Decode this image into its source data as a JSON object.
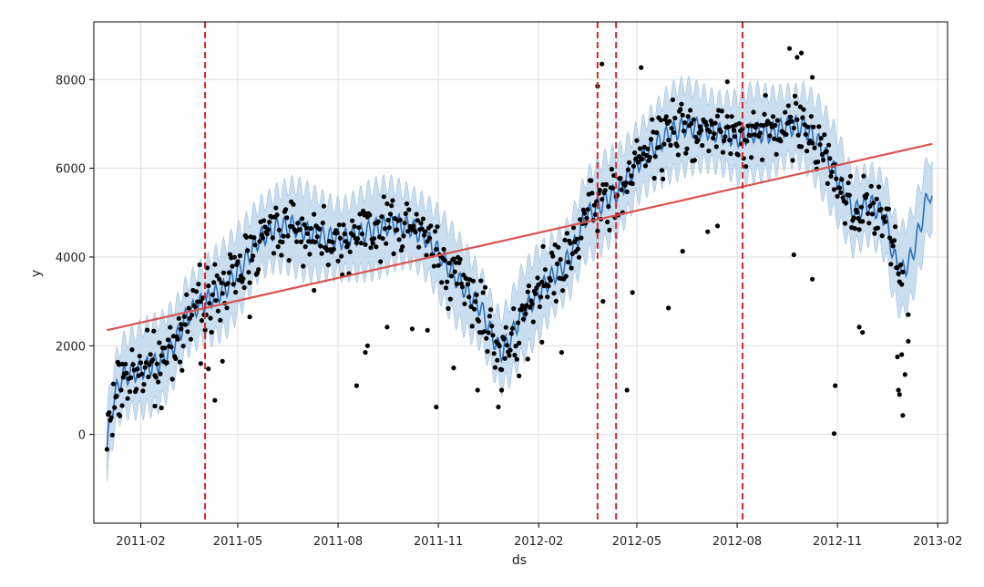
{
  "chart_data": {
    "type": "line",
    "xlabel": "ds",
    "ylabel": "y",
    "x_range": [
      "2010-12-20",
      "2013-02-10"
    ],
    "y_range": [
      -2000,
      9300
    ],
    "grid": true,
    "x_ticks": [
      "2011-02",
      "2011-05",
      "2011-08",
      "2011-11",
      "2012-02",
      "2012-05",
      "2012-08",
      "2012-11",
      "2013-02"
    ],
    "y_ticks": [
      "0",
      "2000",
      "4000",
      "6000",
      "8000"
    ],
    "colors": {
      "observed": "#000000",
      "forecast": "#2c6fbb",
      "uncertainty": "#b8d3ea",
      "trend": "#d9534f",
      "changepoint": "#d62728",
      "grid": "#dddddd",
      "frame": "#000000"
    },
    "series": [
      {
        "role": "forecast",
        "points": [
          [
            "2011-01-01",
            -300
          ],
          [
            "2011-01-05",
            500
          ],
          [
            "2011-01-10",
            1000
          ],
          [
            "2011-01-15",
            1300
          ],
          [
            "2011-01-25",
            1400
          ],
          [
            "2011-02-05",
            1500
          ],
          [
            "2011-02-20",
            1650
          ],
          [
            "2011-03-05",
            2100
          ],
          [
            "2011-03-15",
            2650
          ],
          [
            "2011-03-25",
            2900
          ],
          [
            "2011-04-05",
            3050
          ],
          [
            "2011-04-20",
            3300
          ],
          [
            "2011-05-05",
            3800
          ],
          [
            "2011-05-20",
            4400
          ],
          [
            "2011-06-05",
            4650
          ],
          [
            "2011-06-20",
            4700
          ],
          [
            "2011-07-05",
            4550
          ],
          [
            "2011-07-20",
            4450
          ],
          [
            "2011-08-05",
            4400
          ],
          [
            "2011-08-20",
            4500
          ],
          [
            "2011-09-05",
            4650
          ],
          [
            "2011-09-20",
            4750
          ],
          [
            "2011-10-05",
            4700
          ],
          [
            "2011-10-20",
            4450
          ],
          [
            "2011-11-01",
            4100
          ],
          [
            "2011-11-15",
            3600
          ],
          [
            "2011-12-01",
            3100
          ],
          [
            "2011-12-10",
            2850
          ],
          [
            "2011-12-20",
            2250
          ],
          [
            "2011-12-28",
            1850
          ],
          [
            "2012-01-05",
            2100
          ],
          [
            "2012-01-15",
            2650
          ],
          [
            "2012-02-01",
            3200
          ],
          [
            "2012-02-15",
            3600
          ],
          [
            "2012-03-01",
            4000
          ],
          [
            "2012-03-15",
            4900
          ],
          [
            "2012-04-01",
            5250
          ],
          [
            "2012-04-15",
            5500
          ],
          [
            "2012-05-01",
            6100
          ],
          [
            "2012-05-15",
            6450
          ],
          [
            "2012-06-01",
            6800
          ],
          [
            "2012-06-15",
            6950
          ],
          [
            "2012-07-01",
            6900
          ],
          [
            "2012-07-15",
            6800
          ],
          [
            "2012-08-01",
            6700
          ],
          [
            "2012-08-15",
            6800
          ],
          [
            "2012-09-01",
            6800
          ],
          [
            "2012-09-15",
            6950
          ],
          [
            "2012-10-01",
            6950
          ],
          [
            "2012-10-15",
            6550
          ],
          [
            "2012-11-01",
            5800
          ],
          [
            "2012-11-15",
            5000
          ],
          [
            "2012-12-01",
            5200
          ],
          [
            "2012-12-15",
            4900
          ],
          [
            "2012-12-22",
            4050
          ],
          [
            "2012-12-30",
            3650
          ],
          [
            "2013-01-08",
            4000
          ],
          [
            "2013-01-16",
            4700
          ],
          [
            "2013-01-24",
            5500
          ],
          [
            "2013-01-27",
            5200
          ]
        ],
        "uncertainty_halfwidth": 850,
        "weekly_amplitude": 230
      },
      {
        "role": "trend",
        "points": [
          [
            "2011-01-01",
            2350
          ],
          [
            "2013-01-27",
            6550
          ]
        ]
      }
    ],
    "changepoints": [
      "2011-04-01",
      "2012-03-26",
      "2012-04-12",
      "2012-08-06"
    ],
    "observed": {
      "point_count": 731,
      "residual_spread": 520,
      "dips": [
        [
          "2011-01-12",
          450
        ],
        [
          "2011-01-15",
          650
        ],
        [
          "2011-02-14",
          640
        ],
        [
          "2011-02-20",
          600
        ],
        [
          "2011-03-10",
          2480
        ],
        [
          "2011-03-28",
          1600
        ],
        [
          "2011-04-04",
          1480
        ],
        [
          "2011-04-10",
          770
        ],
        [
          "2011-04-17",
          1650
        ],
        [
          "2011-05-12",
          2650
        ],
        [
          "2011-07-10",
          3250
        ],
        [
          "2011-08-18",
          1100
        ],
        [
          "2011-08-26",
          1850
        ],
        [
          "2011-08-28",
          2000
        ],
        [
          "2011-09-15",
          2420
        ],
        [
          "2011-10-08",
          2380
        ],
        [
          "2011-10-22",
          2350
        ],
        [
          "2011-10-30",
          620
        ],
        [
          "2011-11-15",
          1500
        ],
        [
          "2011-12-07",
          1000
        ],
        [
          "2011-12-26",
          620
        ],
        [
          "2011-12-29",
          1000
        ],
        [
          "2012-01-14",
          1320
        ],
        [
          "2012-01-22",
          1700
        ],
        [
          "2012-02-04",
          2080
        ],
        [
          "2012-02-22",
          1850
        ],
        [
          "2012-03-31",
          3000
        ],
        [
          "2012-04-22",
          1000
        ],
        [
          "2012-04-27",
          3200
        ],
        [
          "2012-05-30",
          2850
        ],
        [
          "2012-06-12",
          4130
        ],
        [
          "2012-07-05",
          4570
        ],
        [
          "2012-07-14",
          4700
        ],
        [
          "2012-09-22",
          4050
        ],
        [
          "2012-10-09",
          3500
        ],
        [
          "2012-10-30",
          1100
        ],
        [
          "2012-10-29",
          20
        ],
        [
          "2012-11-21",
          2420
        ],
        [
          "2012-11-24",
          2300
        ],
        [
          "2012-12-26",
          1750
        ],
        [
          "2012-12-27",
          1000
        ],
        [
          "2012-12-28",
          900
        ],
        [
          "2012-12-31",
          430
        ],
        [
          "2012-12-30",
          1800
        ],
        [
          "2013-01-02",
          1350
        ],
        [
          "2013-01-05",
          2100
        ],
        [
          "2013-01-05",
          2700
        ]
      ],
      "peaks": [
        [
          "2012-03-26",
          7850
        ],
        [
          "2012-03-30",
          8350
        ],
        [
          "2012-05-05",
          8270
        ],
        [
          "2012-09-18",
          8700
        ],
        [
          "2012-09-25",
          8500
        ],
        [
          "2012-09-29",
          8600
        ],
        [
          "2012-10-09",
          8050
        ],
        [
          "2012-07-23",
          7950
        ]
      ]
    }
  }
}
